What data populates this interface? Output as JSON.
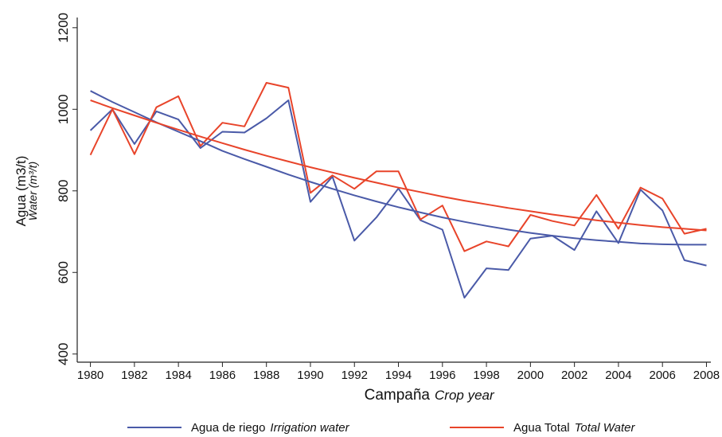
{
  "chart_data": {
    "type": "line",
    "y_label": "Agua (m3/t)",
    "y_label_en": "Water (m³/t)",
    "x_label": "Campaña",
    "x_label_en": "Crop year",
    "x": [
      1980,
      1981,
      1982,
      1983,
      1984,
      1985,
      1986,
      1987,
      1988,
      1989,
      1990,
      1991,
      1992,
      1993,
      1994,
      1995,
      1996,
      1997,
      1998,
      1999,
      2000,
      2001,
      2002,
      2003,
      2004,
      2005,
      2006,
      2007,
      2008
    ],
    "xlim": [
      1979.4,
      2008.2
    ],
    "xticks": [
      1980,
      1982,
      1984,
      1986,
      1988,
      1990,
      1992,
      1994,
      1996,
      1998,
      2000,
      2002,
      2004,
      2006,
      2008
    ],
    "ylim": [
      380,
      1225
    ],
    "yticks": [
      400,
      600,
      800,
      1000,
      1200
    ],
    "series": [
      {
        "name": "Agua de riego",
        "name_en": "Irrigation water",
        "color": "#4a5aa8",
        "values": [
          948,
          1000,
          915,
          995,
          975,
          905,
          945,
          943,
          978,
          1022,
          773,
          835,
          678,
          735,
          806,
          728,
          705,
          538,
          610,
          606,
          683,
          690,
          655,
          750,
          672,
          803,
          752,
          630,
          617
        ]
      },
      {
        "name": "Agua Total",
        "name_en": "Total Water",
        "color": "#e8442a",
        "values": [
          888,
          1000,
          890,
          1005,
          1032,
          910,
          967,
          958,
          1065,
          1053,
          795,
          838,
          805,
          848,
          848,
          730,
          764,
          652,
          676,
          664,
          741,
          726,
          715,
          790,
          707,
          808,
          781,
          695,
          707
        ]
      },
      {
        "color": "#4a5aa8",
        "values": [
          1045,
          1018,
          993,
          968,
          945,
          922,
          898,
          878,
          859,
          840,
          822,
          805,
          789,
          774,
          760,
          747,
          735,
          724,
          714,
          705,
          697,
          690,
          684,
          679,
          675,
          671,
          669,
          668,
          668
        ]
      },
      {
        "color": "#e8442a",
        "values": [
          1022,
          1003,
          985,
          967,
          950,
          933,
          917,
          901,
          886,
          872,
          858,
          845,
          832,
          820,
          808,
          797,
          786,
          776,
          767,
          758,
          750,
          742,
          735,
          728,
          722,
          716,
          711,
          707,
          703
        ]
      }
    ]
  }
}
